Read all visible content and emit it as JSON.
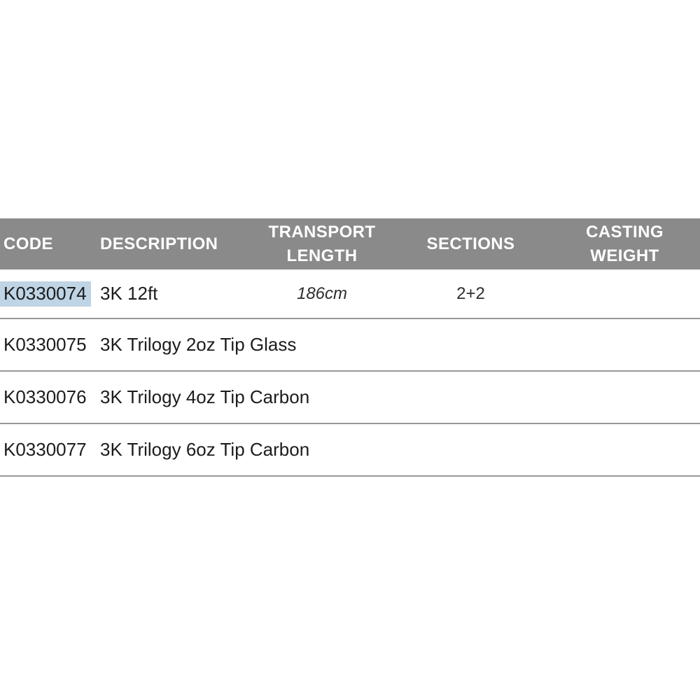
{
  "table": {
    "columns": [
      {
        "key": "code",
        "label": "CODE",
        "align": "left"
      },
      {
        "key": "description",
        "label": "DESCRIPTION",
        "align": "left"
      },
      {
        "key": "transport_length",
        "label": "TRANSPORT LENGTH",
        "align": "center"
      },
      {
        "key": "sections",
        "label": "SECTIONS",
        "align": "center"
      },
      {
        "key": "casting_weight",
        "label": "CASTING WEIGHT",
        "align": "center"
      }
    ],
    "rows": [
      {
        "code": "K0330074",
        "description": "3K 12ft",
        "transport_length": "186cm",
        "sections": "2+2",
        "casting_weight": "",
        "code_selected": true
      },
      {
        "code": "K0330075",
        "description": "3K Trilogy 2oz Tip Glass",
        "transport_length": "",
        "sections": "",
        "casting_weight": "",
        "code_selected": false
      },
      {
        "code": "K0330076",
        "description": "3K Trilogy 4oz Tip Carbon",
        "transport_length": "",
        "sections": "",
        "casting_weight": "",
        "code_selected": false
      },
      {
        "code": "K0330077",
        "description": "3K Trilogy 6oz Tip Carbon",
        "transport_length": "",
        "sections": "",
        "casting_weight": "",
        "code_selected": false
      }
    ],
    "colors": {
      "header_bg": "#8a8a8a",
      "header_text": "#ffffff",
      "body_text": "#1c1c1c",
      "muted_text": "#2e2e2e",
      "row_divider": "#979797",
      "code_highlight": "#bfd4e4"
    }
  }
}
